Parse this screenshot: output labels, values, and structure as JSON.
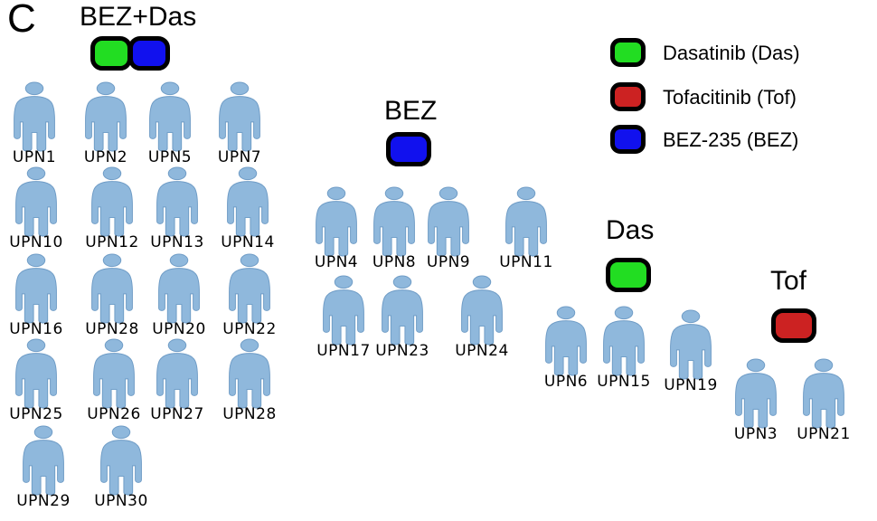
{
  "panel_letter": "C",
  "colors": {
    "dasatinib": "#22dd22",
    "tofacitinib": "#cc2222",
    "bez": "#1111ee",
    "person_fill": "#8fb8dc",
    "person_shade": "#6f9cc6"
  },
  "legend": [
    {
      "label": "Dasatinib (Das)",
      "color": "#22dd22"
    },
    {
      "label": "Tofacitinib (Tof)",
      "color": "#cc2222"
    },
    {
      "label": "BEZ-235 (BEZ)",
      "color": "#1111ee"
    }
  ],
  "groups": {
    "bez_das": {
      "title": "BEZ+Das",
      "patients": [
        "UPN1",
        "UPN2",
        "UPN5",
        "UPN7",
        "UPN10",
        "UPN12",
        "UPN13",
        "UPN14",
        "UPN16",
        "UPN28",
        "UPN20",
        "UPN22",
        "UPN25",
        "UPN26",
        "UPN27",
        "UPN28",
        "UPN29",
        "UPN30"
      ]
    },
    "bez": {
      "title": "BEZ",
      "patients": [
        "UPN4",
        "UPN8",
        "UPN9",
        "UPN11",
        "UPN17",
        "UPN23",
        "UPN24"
      ]
    },
    "das": {
      "title": "Das",
      "patients": [
        "UPN6",
        "UPN15",
        "UPN19"
      ]
    },
    "tof": {
      "title": "Tof",
      "patients": [
        "UPN3",
        "UPN21"
      ]
    }
  }
}
